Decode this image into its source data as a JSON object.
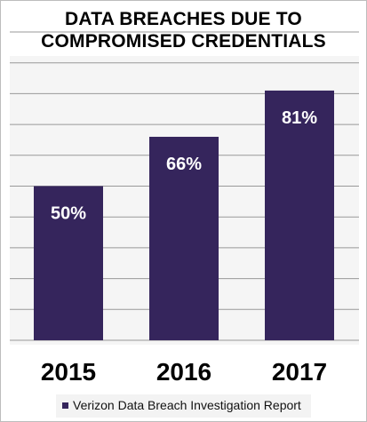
{
  "chart_data": {
    "type": "bar",
    "title": "DATA BREACHES DUE TO COMPROMISED CREDENTIALS",
    "categories": [
      "2015",
      "2016",
      "2017"
    ],
    "series": [
      {
        "name": "Verizon Data Breach Investigation Report",
        "values": [
          50,
          66,
          81
        ],
        "labels": [
          "50%",
          "66%",
          "81%"
        ]
      }
    ],
    "ylim": [
      0,
      100
    ],
    "grid": true,
    "legend": "bottom",
    "xlabel": "",
    "ylabel": ""
  },
  "colors": {
    "bar": "#35255c",
    "grid": "#999999",
    "label": "#ffffff",
    "axis_text": "#000000"
  }
}
